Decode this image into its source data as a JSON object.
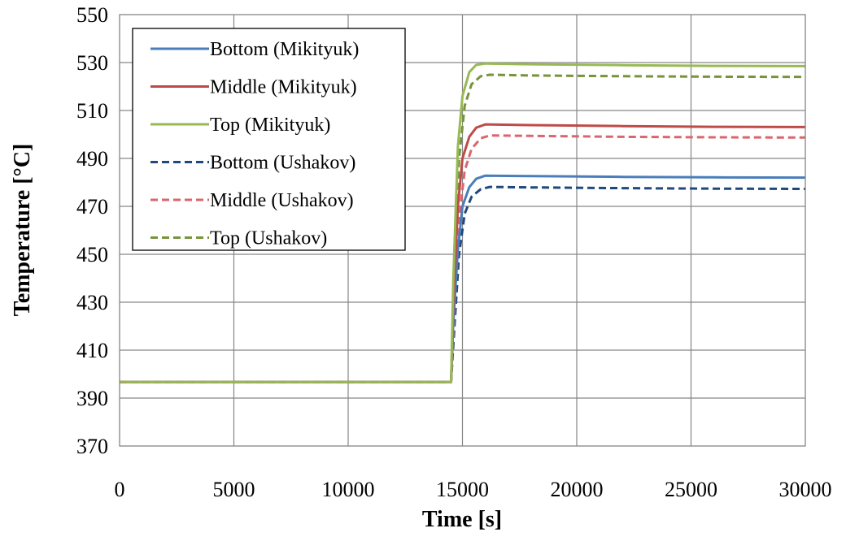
{
  "chart_data": {
    "type": "line",
    "xlabel": "Time [s]",
    "ylabel": "Temperature [°C]",
    "xlim": [
      0,
      30000
    ],
    "ylim": [
      370,
      550
    ],
    "xticks": [
      0,
      5000,
      10000,
      15000,
      20000,
      25000,
      30000
    ],
    "yticks": [
      370,
      390,
      410,
      430,
      450,
      470,
      490,
      510,
      530,
      550
    ],
    "grid": true,
    "legend_position": "top-left",
    "series": [
      {
        "name": "Bottom (Mikityuk)",
        "color": "#4a7ebb",
        "style": "solid",
        "x": [
          0,
          14500,
          14600,
          14800,
          15000,
          15300,
          15600,
          16000,
          18000,
          22000,
          26000,
          30000
        ],
        "y": [
          396.7,
          396.7,
          422,
          452,
          470,
          478,
          481.5,
          482.8,
          482.6,
          482.3,
          482.1,
          482.0
        ]
      },
      {
        "name": "Middle (Mikityuk)",
        "color": "#be4b48",
        "style": "solid",
        "x": [
          0,
          14500,
          14600,
          14800,
          15000,
          15300,
          15600,
          16000,
          18000,
          22000,
          26000,
          30000
        ],
        "y": [
          396.7,
          396.7,
          430,
          470,
          490,
          499,
          502.8,
          504.2,
          503.9,
          503.5,
          503.2,
          503.1
        ]
      },
      {
        "name": "Top (Mikityuk)",
        "color": "#98b954",
        "style": "solid",
        "x": [
          0,
          14500,
          14600,
          14800,
          15000,
          15300,
          15600,
          16000,
          18000,
          22000,
          26000,
          30000
        ],
        "y": [
          396.7,
          396.7,
          440,
          495,
          516,
          526,
          529,
          529.6,
          529.3,
          528.9,
          528.6,
          528.5
        ]
      },
      {
        "name": "Bottom (Ushakov)",
        "color": "#1f497d",
        "style": "dashed",
        "x": [
          0,
          14500,
          14650,
          14850,
          15100,
          15400,
          15800,
          16200,
          18000,
          22000,
          26000,
          30000
        ],
        "y": [
          396.7,
          396.7,
          420,
          450,
          467,
          474,
          477.2,
          478.1,
          477.9,
          477.6,
          477.4,
          477.3
        ]
      },
      {
        "name": "Middle (Ushakov)",
        "color": "#d9666e",
        "style": "dashed",
        "x": [
          0,
          14500,
          14650,
          14850,
          15100,
          15400,
          15800,
          16200,
          18000,
          22000,
          26000,
          30000
        ],
        "y": [
          396.7,
          396.7,
          428,
          465,
          485,
          494,
          498.4,
          499.6,
          499.4,
          499.0,
          498.8,
          498.7
        ]
      },
      {
        "name": "Top (Ushakov)",
        "color": "#77933c",
        "style": "dashed",
        "x": [
          0,
          14500,
          14650,
          14850,
          15100,
          15400,
          15800,
          16200,
          18000,
          22000,
          26000,
          30000
        ],
        "y": [
          396.7,
          396.7,
          438,
          490,
          512,
          521,
          524.3,
          524.9,
          524.6,
          524.3,
          524.1,
          524.0
        ]
      }
    ]
  }
}
